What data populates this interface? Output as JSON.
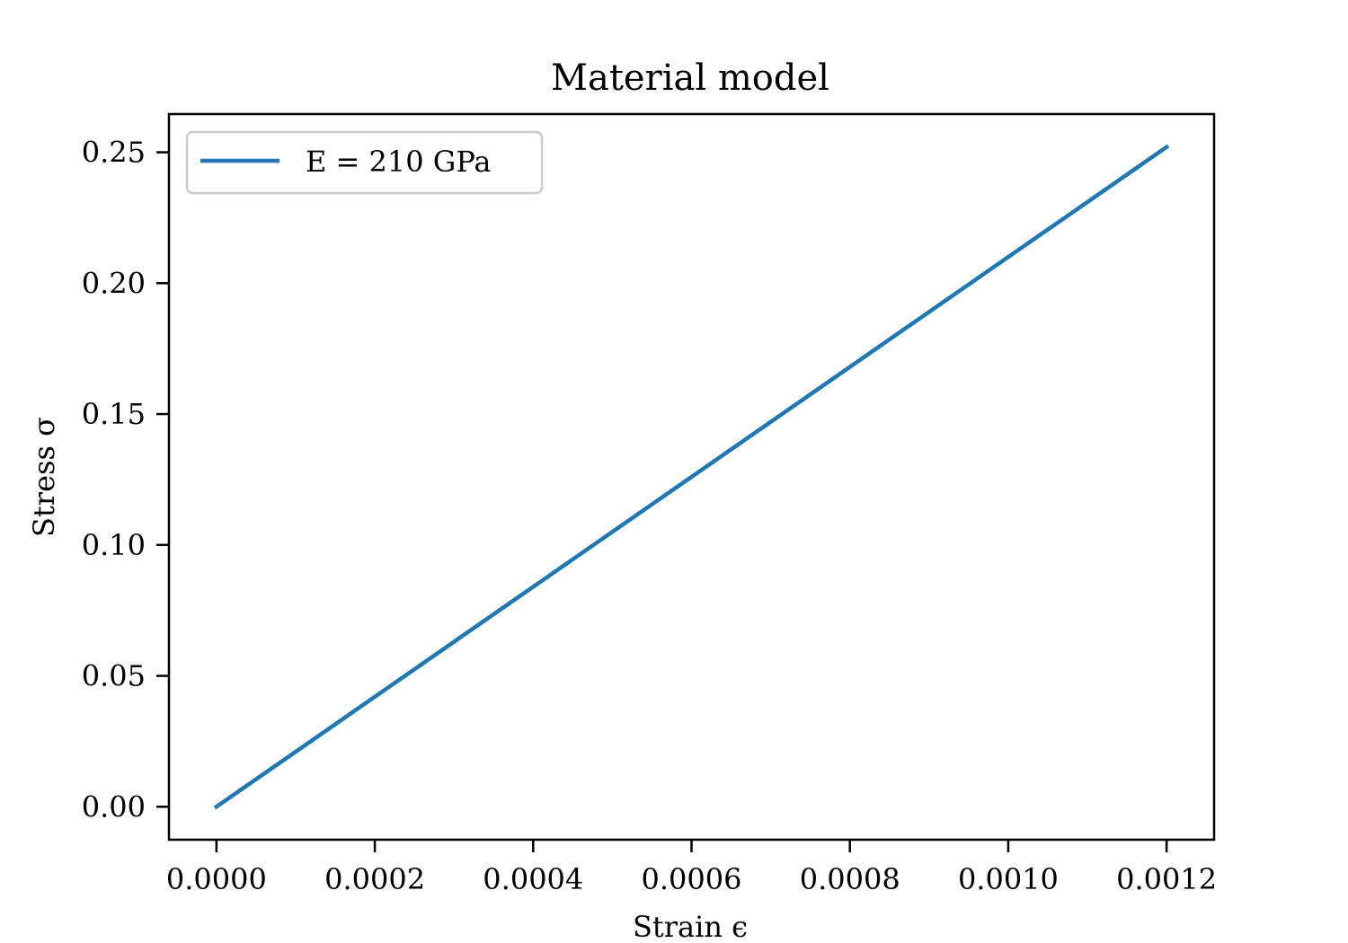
{
  "chart_data": {
    "type": "line",
    "title": "Material model",
    "xlabel": "Strain ϵ",
    "ylabel": "Stress σ",
    "xlim": [
      -6e-05,
      0.00126
    ],
    "ylim": [
      -0.0126,
      0.2646
    ],
    "xticks": [
      0.0,
      0.0002,
      0.0004,
      0.0006,
      0.0008,
      0.001,
      0.0012
    ],
    "xtick_labels": [
      "0.0000",
      "0.0002",
      "0.0004",
      "0.0006",
      "0.0008",
      "0.0010",
      "0.0012"
    ],
    "yticks": [
      0.0,
      0.05,
      0.1,
      0.15,
      0.2,
      0.25
    ],
    "ytick_labels": [
      "0.00",
      "0.05",
      "0.10",
      "0.15",
      "0.20",
      "0.25"
    ],
    "grid": false,
    "legend_position": "top-left",
    "series": [
      {
        "name": "E = 210 GPa",
        "color": "#1f77b4",
        "x": [
          0.0,
          0.0012
        ],
        "y": [
          0.0,
          0.252
        ]
      }
    ]
  }
}
